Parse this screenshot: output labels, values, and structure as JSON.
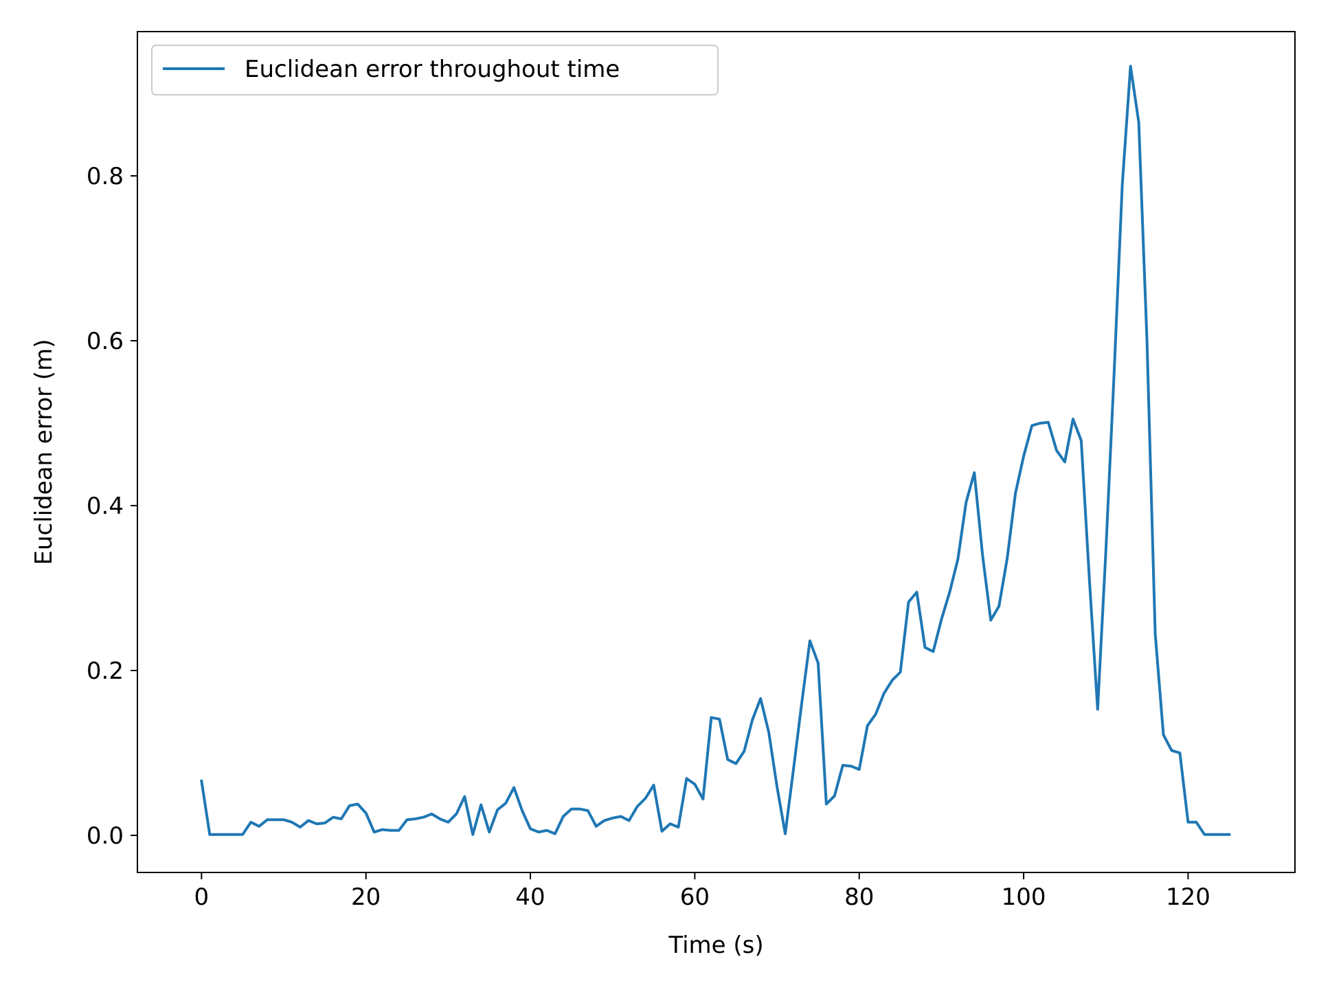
{
  "chart_data": {
    "type": "line",
    "xlabel": "Time (s)",
    "ylabel": "Euclidean error (m)",
    "xlim": [
      -7.8,
      133
    ],
    "ylim": [
      -0.045,
      0.975
    ],
    "xticks": [
      0,
      20,
      40,
      60,
      80,
      100,
      120
    ],
    "xtick_labels": [
      "0",
      "20",
      "40",
      "60",
      "80",
      "100",
      "120"
    ],
    "yticks": [
      0.0,
      0.2,
      0.4,
      0.6,
      0.8
    ],
    "ytick_labels": [
      "0.0",
      "0.2",
      "0.4",
      "0.6",
      "0.8"
    ],
    "grid": false,
    "legend_position": "upper-left",
    "series": [
      {
        "name": "Euclidean error throughout time",
        "color": "#1f77b4",
        "x": [
          0,
          1,
          2,
          3,
          4,
          5,
          6,
          7,
          8,
          9,
          10,
          11,
          12,
          13,
          14,
          15,
          16,
          17,
          18,
          19,
          20,
          21,
          22,
          23,
          24,
          25,
          26,
          27,
          28,
          29,
          30,
          31,
          32,
          33,
          34,
          35,
          36,
          37,
          38,
          39,
          40,
          41,
          42,
          43,
          44,
          45,
          46,
          47,
          48,
          49,
          50,
          51,
          52,
          53,
          54,
          55,
          56,
          57,
          58,
          59,
          60,
          61,
          62,
          63,
          64,
          65,
          66,
          67,
          68,
          69,
          70,
          71,
          72,
          73,
          74,
          75,
          76,
          77,
          78,
          79,
          80,
          81,
          82,
          83,
          84,
          85,
          86,
          87,
          88,
          89,
          90,
          91,
          92,
          93,
          94,
          95,
          96,
          97,
          98,
          99,
          100,
          101,
          102,
          103,
          104,
          105,
          106,
          107,
          108,
          109,
          110,
          111,
          112,
          113,
          114,
          115,
          116,
          117,
          118,
          119,
          120,
          121,
          122,
          123,
          124,
          125
        ],
        "y": [
          0.066,
          0.001,
          0.001,
          0.001,
          0.001,
          0.001,
          0.016,
          0.011,
          0.019,
          0.019,
          0.019,
          0.016,
          0.01,
          0.018,
          0.014,
          0.015,
          0.022,
          0.02,
          0.036,
          0.038,
          0.027,
          0.004,
          0.007,
          0.006,
          0.006,
          0.019,
          0.02,
          0.022,
          0.026,
          0.02,
          0.016,
          0.026,
          0.047,
          0.001,
          0.037,
          0.004,
          0.031,
          0.039,
          0.058,
          0.03,
          0.008,
          0.004,
          0.006,
          0.002,
          0.023,
          0.032,
          0.032,
          0.03,
          0.011,
          0.018,
          0.021,
          0.023,
          0.018,
          0.035,
          0.045,
          0.061,
          0.005,
          0.014,
          0.01,
          0.069,
          0.062,
          0.044,
          0.143,
          0.141,
          0.092,
          0.087,
          0.102,
          0.14,
          0.166,
          0.125,
          0.059,
          0.002,
          0.08,
          0.16,
          0.236,
          0.209,
          0.038,
          0.048,
          0.085,
          0.084,
          0.08,
          0.133,
          0.147,
          0.172,
          0.188,
          0.198,
          0.283,
          0.295,
          0.228,
          0.223,
          0.262,
          0.295,
          0.335,
          0.404,
          0.44,
          0.34,
          0.261,
          0.278,
          0.336,
          0.415,
          0.46,
          0.497,
          0.5,
          0.501,
          0.467,
          0.453,
          0.505,
          0.479,
          0.31,
          0.153,
          0.345,
          0.56,
          0.79,
          0.933,
          0.865,
          0.6,
          0.245,
          0.122,
          0.103,
          0.1,
          0.016,
          0.016,
          0.001,
          0.001,
          0.001,
          0.001
        ]
      }
    ]
  }
}
